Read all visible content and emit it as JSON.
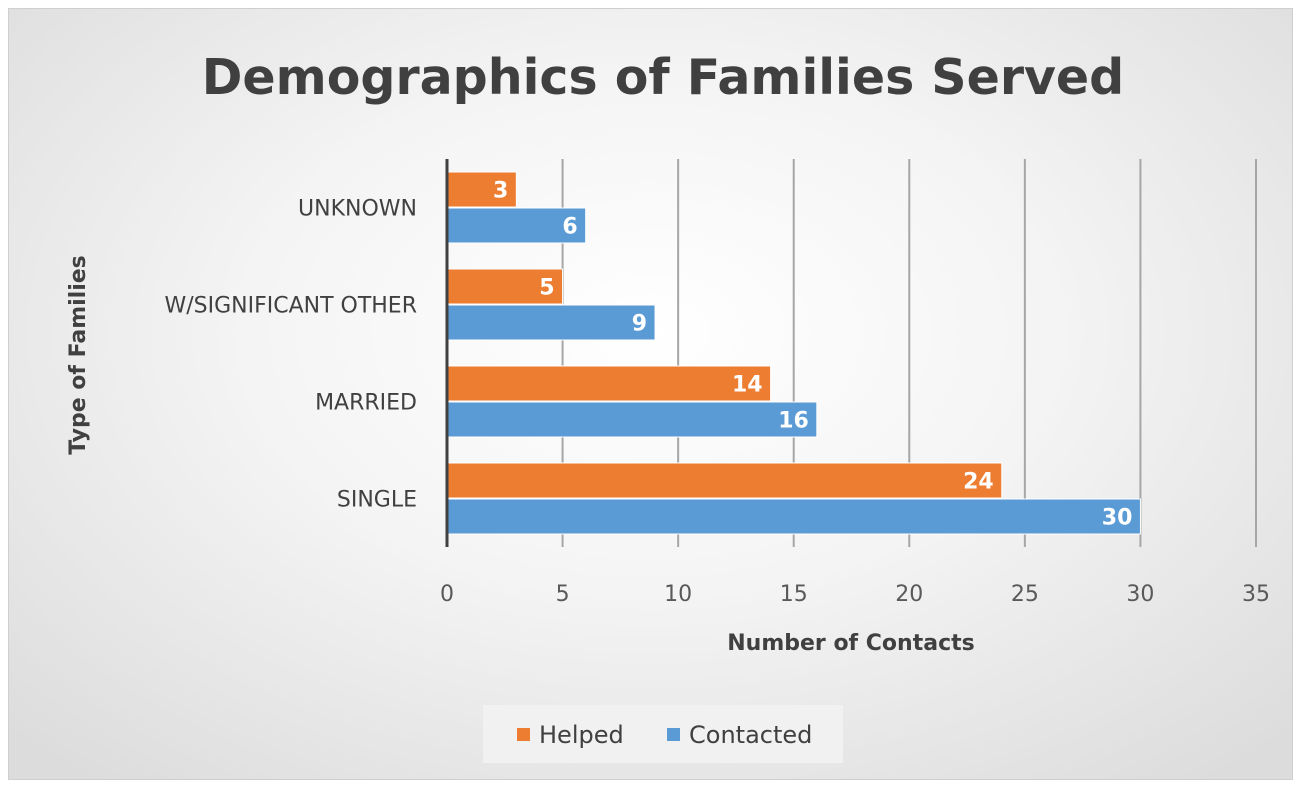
{
  "chart_data": {
    "type": "bar",
    "orientation": "horizontal",
    "title": "Demographics  of Families Served",
    "xlabel": "Number of Contacts",
    "ylabel": "Type of Families",
    "categories": [
      "UNKNOWN",
      "W/SIGNIFICANT OTHER",
      "MARRIED",
      "SINGLE"
    ],
    "series": [
      {
        "name": "Helped",
        "color": "#ED7D31",
        "values": [
          3,
          5,
          14,
          24
        ]
      },
      {
        "name": "Contacted",
        "color": "#5B9BD5",
        "values": [
          6,
          9,
          16,
          30
        ]
      }
    ],
    "xlim": [
      0,
      35
    ],
    "xticks": [
      0,
      5,
      10,
      15,
      20,
      25,
      30,
      35
    ],
    "grid": true,
    "legend_position": "bottom",
    "data_labels": true
  }
}
